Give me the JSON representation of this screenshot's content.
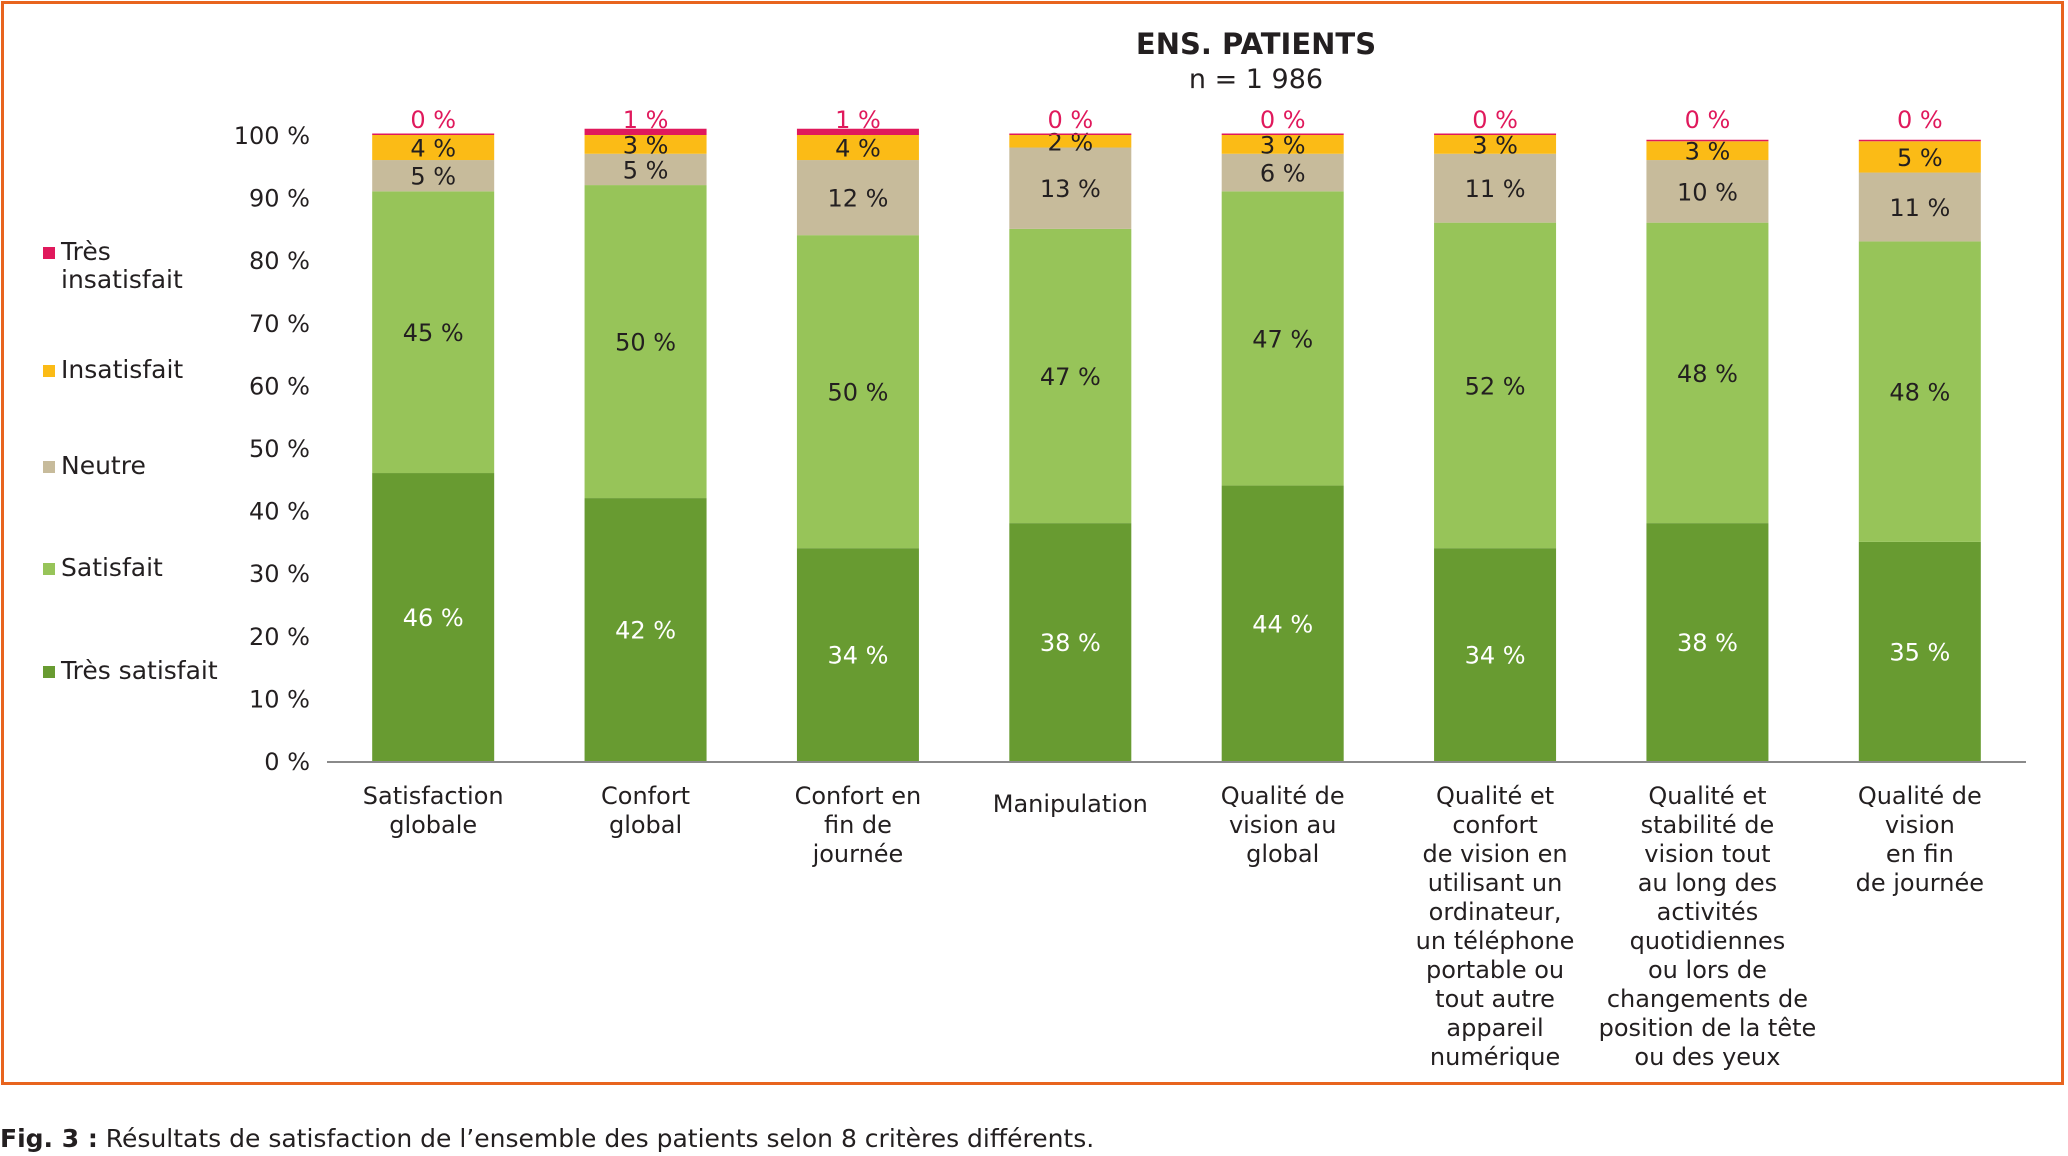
{
  "chart_data": {
    "type": "bar",
    "stacked": true,
    "title": "ENS. PATIENTS",
    "subtitle": "n = 1 986",
    "ylim": [
      0,
      100
    ],
    "yticks": [
      "0 %",
      "10 %",
      "20 %",
      "30 %",
      "40 %",
      "50 %",
      "60 %",
      "70 %",
      "80 %",
      "90 %",
      "100 %"
    ],
    "legend_position": "left",
    "categories": [
      [
        "Satisfaction",
        "globale"
      ],
      [
        "Confort",
        "global"
      ],
      [
        "Confort en",
        "fin de",
        "journée"
      ],
      [
        "Manipulation"
      ],
      [
        "Qualité de",
        "vision au",
        "global"
      ],
      [
        "Qualité et",
        "confort",
        "de vision en",
        "utilisant un",
        "ordinateur,",
        "un téléphone",
        "portable ou",
        "tout autre",
        "appareil",
        "numérique"
      ],
      [
        "Qualité et",
        "stabilité de",
        "vision tout",
        "au long des",
        "activités",
        "quotidiennes",
        "ou lors de",
        "changements de",
        "position de la tête",
        "ou des yeux"
      ],
      [
        "Qualité de",
        "vision",
        "en fin",
        "de journée"
      ]
    ],
    "series": [
      {
        "name": "Très satisfait",
        "color": "#689b31",
        "label_color": "#ffffff",
        "values": [
          46,
          42,
          34,
          38,
          44,
          34,
          38,
          35
        ]
      },
      {
        "name": "Satisfait",
        "color": "#97c459",
        "label_color": "#231f20",
        "values": [
          45,
          50,
          50,
          47,
          47,
          52,
          48,
          48
        ]
      },
      {
        "name": "Neutre",
        "color": "#c7bb9b",
        "label_color": "#231f20",
        "values": [
          5,
          5,
          12,
          13,
          6,
          11,
          10,
          11
        ]
      },
      {
        "name": "Insatisfait",
        "color": "#fbbb16",
        "label_color": "#231f20",
        "values": [
          4,
          3,
          4,
          2,
          3,
          3,
          3,
          5
        ]
      },
      {
        "name": "Très insatisfait",
        "color": "#e0195c",
        "label_color": "#e0195c",
        "values": [
          0,
          1,
          1,
          0,
          0,
          0,
          0,
          0
        ]
      }
    ],
    "legend_order": [
      "Très insatisfait",
      "Insatisfait",
      "Neutre",
      "Satisfait",
      "Très satisfait"
    ],
    "legend_lines": [
      [
        "Très",
        "insatisfait"
      ],
      [
        "Insatisfait"
      ],
      [
        "Neutre"
      ],
      [
        "Satisfait"
      ],
      [
        "Très satisfait"
      ]
    ]
  },
  "caption": {
    "label": "Fig. 3 :",
    "text": " Résultats de satisfaction de l’ensemble des patients selon 8 critères différents."
  }
}
